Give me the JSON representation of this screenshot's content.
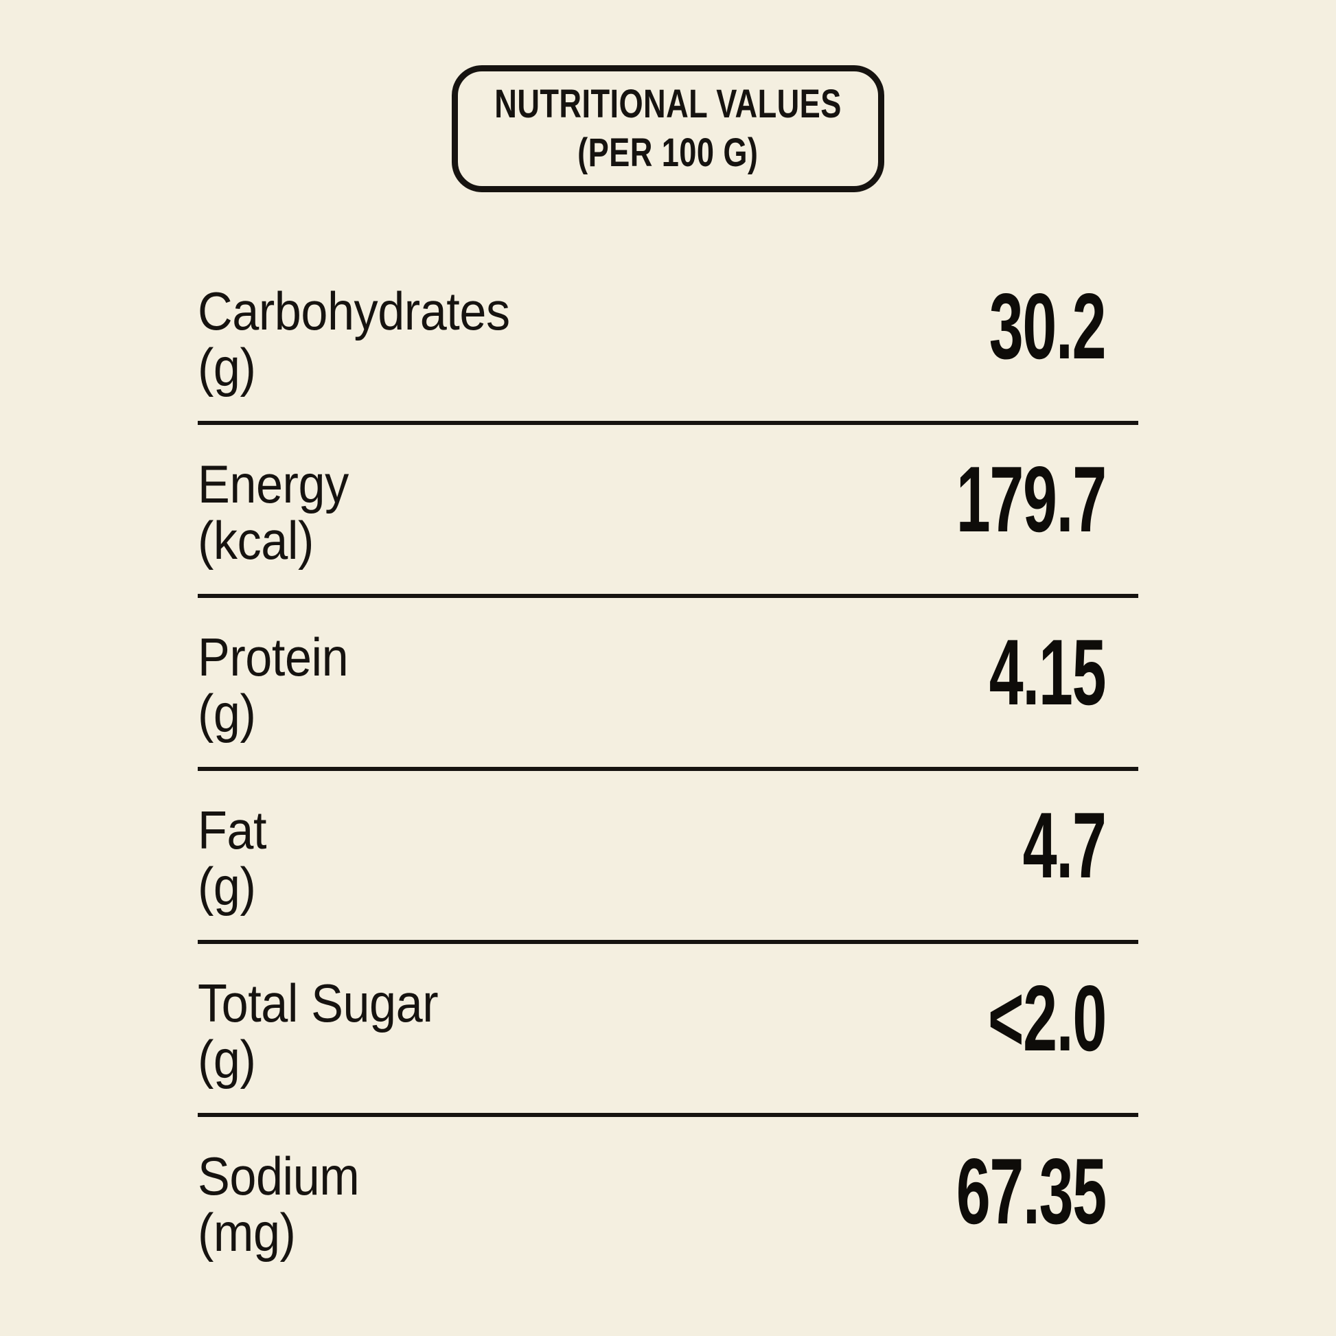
{
  "page": {
    "background_color": "#f4efe0",
    "ink_color": "#161310"
  },
  "header": {
    "title_line1": "NUTRITIONAL VALUES",
    "title_line2": "(PER 100 G)"
  },
  "table": {
    "rows": [
      {
        "name": "Carbohydrates",
        "unit": "(g)",
        "value": "30.2"
      },
      {
        "name": "Energy",
        "unit": "(kcal)",
        "value": "179.7"
      },
      {
        "name": "Protein",
        "unit": "(g)",
        "value": "4.15"
      },
      {
        "name": "Fat",
        "unit": "(g)",
        "value": "4.7"
      },
      {
        "name": "Total Sugar",
        "unit": "(g)",
        "value": "<2.0"
      },
      {
        "name": "Sodium",
        "unit": "(mg)",
        "value": "67.35"
      }
    ]
  }
}
